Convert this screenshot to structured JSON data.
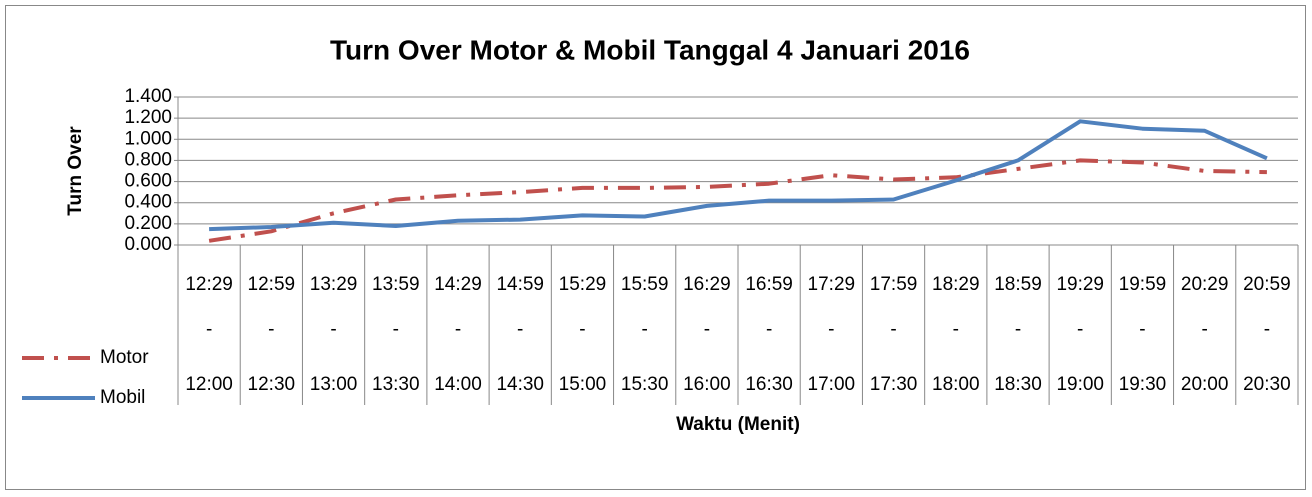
{
  "chart_data": {
    "type": "line",
    "title": "Turn Over Motor & Mobil Tanggal 4 Januari 2016",
    "y_label": "Turn Over",
    "x_label": "Waktu (Menit)",
    "categories": [
      [
        "12:29",
        "-",
        "12:00"
      ],
      [
        "12:59",
        "-",
        "12:30"
      ],
      [
        "13:29",
        "-",
        "13:00"
      ],
      [
        "13:59",
        "-",
        "13:30"
      ],
      [
        "14:29",
        "-",
        "14:00"
      ],
      [
        "14:59",
        "-",
        "14:30"
      ],
      [
        "15:29",
        "-",
        "15:00"
      ],
      [
        "15:59",
        "-",
        "15:30"
      ],
      [
        "16:29",
        "-",
        "16:00"
      ],
      [
        "16:59",
        "-",
        "16:30"
      ],
      [
        "17:29",
        "-",
        "17:00"
      ],
      [
        "17:59",
        "-",
        "17:30"
      ],
      [
        "18:29",
        "-",
        "18:00"
      ],
      [
        "18:59",
        "-",
        "18:30"
      ],
      [
        "19:29",
        "-",
        "19:00"
      ],
      [
        "19:59",
        "-",
        "19:30"
      ],
      [
        "20:29",
        "-",
        "20:00"
      ],
      [
        "20:59",
        "-",
        "20:30"
      ]
    ],
    "series": [
      {
        "name": "Motor",
        "color": "#c0504d",
        "dash": "dash-dot",
        "values": [
          0.04,
          0.13,
          0.3,
          0.43,
          0.47,
          0.5,
          0.54,
          0.54,
          0.55,
          0.58,
          0.66,
          0.62,
          0.64,
          0.72,
          0.8,
          0.78,
          0.7,
          0.69
        ]
      },
      {
        "name": "Mobil",
        "color": "#4f81bd",
        "values": [
          0.15,
          0.17,
          0.21,
          0.18,
          0.23,
          0.24,
          0.28,
          0.27,
          0.37,
          0.42,
          0.42,
          0.43,
          0.61,
          0.8,
          1.17,
          1.1,
          1.08,
          0.82
        ]
      }
    ],
    "ylim": [
      0,
      1.4
    ],
    "yticks": [
      {
        "value": 0,
        "label": "0.000"
      },
      {
        "value": 0.2,
        "label": "0.200"
      },
      {
        "value": 0.4,
        "label": "0.400"
      },
      {
        "value": 0.6,
        "label": "0.600"
      },
      {
        "value": 0.8,
        "label": "0.800"
      },
      {
        "value": 1.0,
        "label": "1.000"
      },
      {
        "value": 1.2,
        "label": "1.200"
      },
      {
        "value": 1.4,
        "label": "1.400"
      }
    ],
    "grid": true,
    "legend": "left"
  }
}
